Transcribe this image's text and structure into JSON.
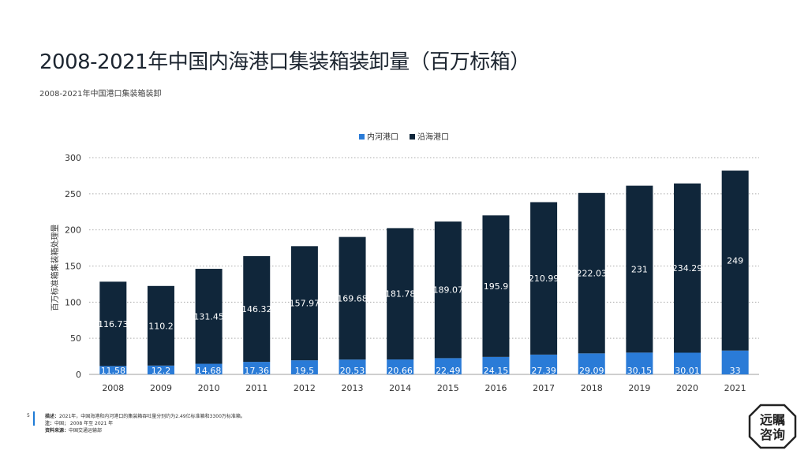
{
  "header": {
    "title": "2008-2021年中国内海港口集装箱装卸量（百万标箱）",
    "subtitle": "2008-2021年中国港口集装箱装卸"
  },
  "colors": {
    "inland": "#2a7bd7",
    "coastal": "#10263a",
    "grid": "#888888"
  },
  "chart_data": {
    "type": "bar",
    "stacked": true,
    "categories": [
      "2008",
      "2009",
      "2010",
      "2011",
      "2012",
      "2013",
      "2014",
      "2015",
      "2016",
      "2017",
      "2018",
      "2019",
      "2020",
      "2021"
    ],
    "series": [
      {
        "name": "内河港口",
        "values": [
          11.58,
          12.2,
          14.68,
          17.36,
          19.5,
          20.53,
          20.66,
          22.49,
          24.15,
          27.39,
          29.09,
          30.15,
          30.01,
          33
        ],
        "labels": [
          "11.58",
          "12.2",
          "14.68",
          "17.36",
          "19.5",
          "20.53",
          "20.66",
          "22.49",
          "24.15",
          "27.39",
          "29.09",
          "30.15",
          "30.01",
          "33"
        ]
      },
      {
        "name": "沿海港口",
        "values": [
          116.73,
          110.2,
          131.45,
          146.32,
          157.97,
          169.68,
          181.78,
          189.07,
          195.9,
          210.99,
          222.03,
          231,
          234.29,
          249
        ],
        "labels": [
          "116.73",
          "110.2",
          "131.45",
          "146.32",
          "157.97",
          "169.68",
          "181.78",
          "189.07",
          "195.9",
          "210.99",
          "222.03",
          "231",
          "234.29",
          "249"
        ]
      }
    ],
    "ylabel": "百万标准箱集装箱处理量",
    "ylim": [
      0,
      300
    ],
    "yticks": [
      0,
      50,
      100,
      150,
      200,
      250,
      300
    ],
    "ytick_labels": [
      "0",
      "50",
      "100",
      "150",
      "200",
      "250",
      "300"
    ],
    "grid": true,
    "legend_position": "top-center"
  },
  "footer": {
    "page_number": "5",
    "desc_label": "描述：",
    "desc_text": "2021年，中国海港和内河港口的集装箱吞吐量分别约为2.49亿标准箱和3300万标准箱。",
    "note_label": "注：",
    "note_text": "中国； 2008 年至 2021 年",
    "source_label": "资料来源：",
    "source_text": "中国交通运输部"
  },
  "logo": {
    "line1": "远瞩",
    "line2": "咨询"
  }
}
